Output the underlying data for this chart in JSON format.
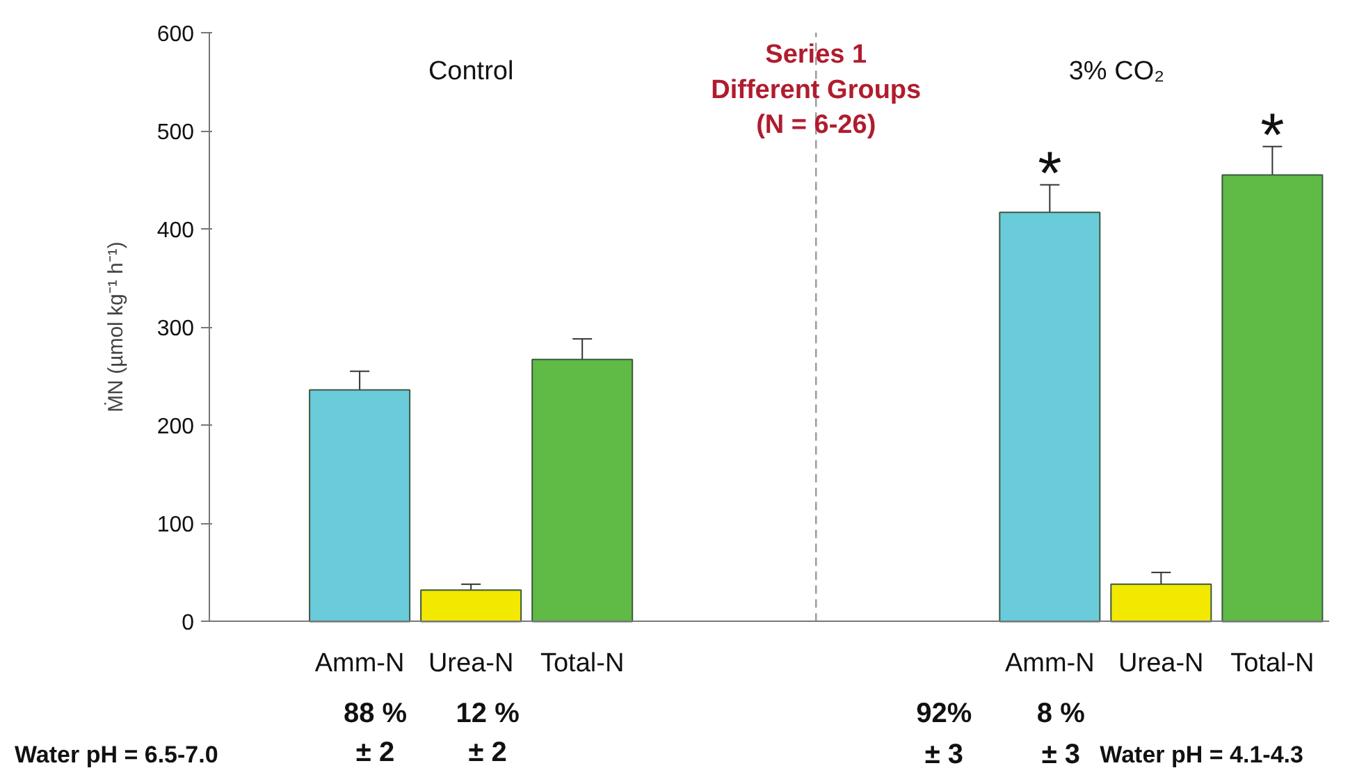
{
  "chart_data": {
    "type": "bar",
    "ylabel": "ṀN (µmol kg⁻¹ h⁻¹)",
    "categories": [
      "Amm-N",
      "Urea-N",
      "Total-N",
      "Amm-N",
      "Urea-N",
      "Total-N"
    ],
    "values": [
      236,
      32,
      267,
      417,
      38,
      455
    ],
    "errors": [
      [
        236,
        255
      ],
      [
        32,
        38
      ],
      [
        267,
        288
      ],
      [
        417,
        445
      ],
      [
        38,
        50
      ],
      [
        455,
        484
      ]
    ],
    "colors": [
      "#6acbdb",
      "#f2e800",
      "#5fba46",
      "#6acbdb",
      "#f2e800",
      "#5fba46"
    ],
    "ylim": [
      0,
      600
    ],
    "yticks": [
      0,
      100,
      200,
      300,
      400,
      500,
      600
    ],
    "grid": false,
    "ref_lines": [
      {
        "axis": "x",
        "value": null,
        "label": null,
        "color": "#999999",
        "line_style": "dashed"
      }
    ],
    "annotations": [
      "Control",
      "3% CO₂",
      "Series 1\nDifferent Groups\n(N = 6-26)",
      {
        "text": "*",
        "y": 445
      },
      {
        "text": "*",
        "y": 484
      },
      "88 %",
      "± 2",
      "12 %",
      "± 2",
      "92%",
      "± 3",
      "8 %",
      "± 3",
      "Water pH = 6.5-7.0",
      "Water pH = 4.1-4.3"
    ]
  }
}
